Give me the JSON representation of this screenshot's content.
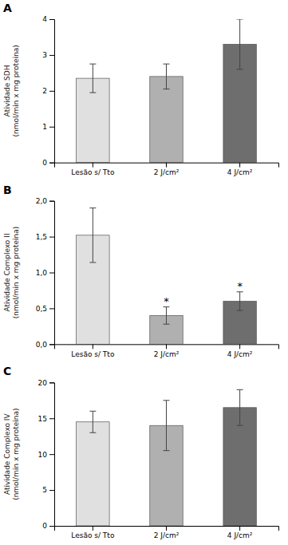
{
  "chart_data": [
    {
      "type": "bar",
      "title": "A",
      "ylabel": "Atividade SDH\n(nmol/min x mg proteina)",
      "categories": [
        "Lesão s/ Tto",
        "2 J/cm²",
        "4 J/cm²"
      ],
      "values": [
        2.35,
        2.4,
        3.3
      ],
      "errors": [
        0.4,
        0.35,
        0.7
      ],
      "colors": [
        "#e0e0e0",
        "#b0b0b0",
        "#6e6e6e"
      ],
      "ylim": [
        0,
        4
      ],
      "yticks": [
        0,
        1,
        2,
        3,
        4
      ],
      "grid": false,
      "annotations": []
    },
    {
      "type": "bar",
      "title": "B",
      "ylabel": "Atividade Complexo II\n(nmol/min x mg proteina)",
      "categories": [
        "Lesão s/ Tto",
        "2 J/cm²",
        "4 J/cm²"
      ],
      "values": [
        1.52,
        0.4,
        0.6
      ],
      "errors": [
        0.38,
        0.12,
        0.13
      ],
      "colors": [
        "#e0e0e0",
        "#b0b0b0",
        "#6e6e6e"
      ],
      "ylim": [
        0,
        2.0
      ],
      "yticks": [
        {
          "value": 0.0,
          "label": "0,0"
        },
        {
          "value": 0.5,
          "label": "0,5"
        },
        {
          "value": 1.0,
          "label": "1,0"
        },
        {
          "value": 1.5,
          "label": "1,5"
        },
        {
          "value": 2.0,
          "label": "2,0"
        }
      ],
      "grid": false,
      "annotations": [
        {
          "category": "2 J/cm²",
          "text": "*"
        },
        {
          "category": "4 J/cm²",
          "text": "*"
        }
      ]
    },
    {
      "type": "bar",
      "title": "C",
      "ylabel": "Atividade Complexo IV\n(nmol/min x mg proteina)",
      "categories": [
        "Lesão s/ Tto",
        "2 J/cm²",
        "4 J/cm²"
      ],
      "values": [
        14.5,
        14.0,
        16.5
      ],
      "errors": [
        1.5,
        3.5,
        2.5
      ],
      "colors": [
        "#e0e0e0",
        "#b0b0b0",
        "#6e6e6e"
      ],
      "ylim": [
        0,
        20
      ],
      "yticks": [
        0,
        5,
        10,
        15,
        20
      ],
      "grid": false,
      "annotations": []
    }
  ]
}
